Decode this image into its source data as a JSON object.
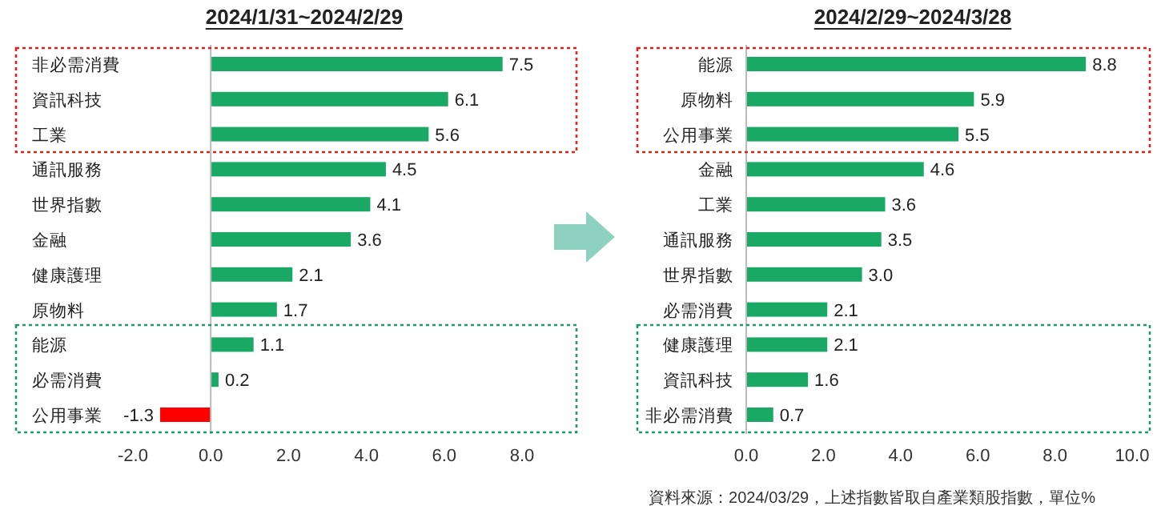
{
  "chart_data": [
    {
      "type": "bar",
      "orientation": "horizontal",
      "title": "2024/1/31~2024/2/29",
      "categories": [
        "非必需消費",
        "資訊科技",
        "工業",
        "通訊服務",
        "世界指數",
        "金融",
        "健康護理",
        "原物料",
        "能源",
        "必需消費",
        "公用事業"
      ],
      "values": [
        7.5,
        6.1,
        5.6,
        4.5,
        4.1,
        3.6,
        2.1,
        1.7,
        1.1,
        0.2,
        -1.3
      ],
      "colors": [
        "#1aa865",
        "#1aa865",
        "#1aa865",
        "#1aa865",
        "#1aa865",
        "#1aa865",
        "#1aa865",
        "#1aa865",
        "#1aa865",
        "#1aa865",
        "#ff0000"
      ],
      "xlim": [
        -2,
        8
      ],
      "xticks": [
        {
          "value": -2,
          "label": "-2.0"
        },
        {
          "value": 0,
          "label": "0.0"
        },
        {
          "value": 2,
          "label": "2.0"
        },
        {
          "value": 4,
          "label": "4.0"
        },
        {
          "value": 6,
          "label": "6.0"
        },
        {
          "value": 8,
          "label": "8.0"
        }
      ],
      "data_labels": true
    },
    {
      "type": "bar",
      "orientation": "horizontal",
      "title": "2024/2/29~2024/3/28",
      "categories": [
        "能源",
        "原物料",
        "公用事業",
        "金融",
        "工業",
        "通訊服務",
        "世界指數",
        "必需消費",
        "健康護理",
        "資訊科技",
        "非必需消費"
      ],
      "values": [
        8.8,
        5.9,
        5.5,
        4.6,
        3.6,
        3.5,
        3.0,
        2.1,
        2.1,
        1.6,
        0.7
      ],
      "colors": [
        "#1aa865",
        "#1aa865",
        "#1aa865",
        "#1aa865",
        "#1aa865",
        "#1aa865",
        "#1aa865",
        "#1aa865",
        "#1aa865",
        "#1aa865",
        "#1aa865"
      ],
      "xlim": [
        0,
        10
      ],
      "xticks": [
        {
          "value": 0,
          "label": "0.0"
        },
        {
          "value": 2,
          "label": "2.0"
        },
        {
          "value": 4,
          "label": "4.0"
        },
        {
          "value": 6,
          "label": "6.0"
        },
        {
          "value": 8,
          "label": "8.0"
        },
        {
          "value": 10,
          "label": "10.0"
        }
      ],
      "value_labels": [
        "8.8",
        "5.9",
        "5.5",
        "4.6",
        "3.6",
        "3.5",
        "3.0",
        "2.1",
        "2.1",
        "1.6",
        "0.7"
      ],
      "annotations": [
        "資料來源：2024/03/29，上述指數皆取自產業類股指數，單位%"
      ]
    }
  ]
}
